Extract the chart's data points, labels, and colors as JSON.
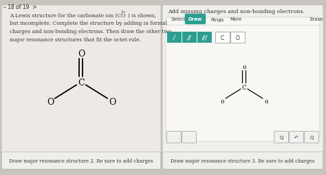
{
  "bg_color": "#c8c5bf",
  "left_panel_bg": "#edeae5",
  "right_panel_bg": "#f0efeb",
  "right_inner_bg": "#f8f7f4",
  "page_indicator": "– 18 of 19  >",
  "left_line1": "A Lewis structure for the carbonate ion (CO",
  "left_line1b": ") is shown,",
  "ion_superscript": "2−",
  "left_lines": [
    "but incomplete. Complete the structure by adding in formal",
    "charges and non-bonding electrons. Then draw the other two",
    "major resonance structures that fit the octet rule."
  ],
  "left_caption": "Draw major resonance structure 2. Be sure to add charges",
  "right_title": "Add missing charges and non-bonding electrons.",
  "right_caption": "Draw major resonance structure 3. Be sure to add charges",
  "toolbar_items": [
    "Select",
    "Draw",
    "Rings",
    "More",
    "Erase"
  ],
  "draw_button_color": "#2b9e91",
  "teal_color": "#2b9e91",
  "text_color": "#2a2a2a",
  "dark_text": "#333333",
  "caption_border": "#bbbbbb",
  "caption_bg": "#f0eeea"
}
